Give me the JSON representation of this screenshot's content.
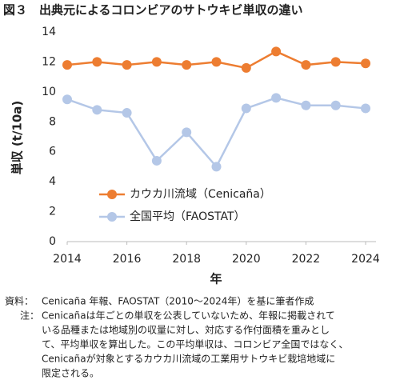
{
  "chart_data": {
    "type": "line",
    "title": "図３　出典元によるコロンビアのサトウキビ単収の違い",
    "y_label": "単収 (t/10a)",
    "x_label": "年",
    "x": [
      2014,
      2015,
      2016,
      2017,
      2018,
      2019,
      2020,
      2021,
      2022,
      2023,
      2024
    ],
    "series": [
      {
        "name": "カウカ川流域（Cenicaña）",
        "color": "#ed7d31",
        "values": [
          11.8,
          12.0,
          11.8,
          12.0,
          11.8,
          12.0,
          11.6,
          12.7,
          11.8,
          12.0,
          11.9
        ]
      },
      {
        "name": "全国平均（FAOSTAT）",
        "color": "#b4c7e7",
        "values": [
          9.5,
          8.8,
          8.6,
          5.4,
          7.3,
          5.0,
          8.9,
          9.6,
          9.1,
          9.1,
          8.9
        ]
      }
    ],
    "xlim": [
      2014,
      2024
    ],
    "xticks": [
      2014,
      2016,
      2018,
      2020,
      2022,
      2024
    ],
    "ylim": [
      0,
      14
    ],
    "yticks": [
      0,
      2,
      4,
      6,
      8,
      10,
      12,
      14
    ],
    "grid": false,
    "legend": "lower left"
  },
  "notes": {
    "source_label": "資料：",
    "source": "Cenicaña 年報、FAOSTAT（2010～2024年）を基に筆者作成",
    "note_label": "注：",
    "note_lines": [
      "Cenicañaは年ごとの単収を公表していないため、年報に掲載されて",
      "いる品種または地域別の収量に対し、対応する作付面積を重みとし",
      "て、平均単収を算出した。この平均単収は、コロンビア全国ではなく、",
      "Cenicañaが対象とするカウカ川流域の工業用サトウキビ栽培地域に",
      "限定される。"
    ]
  }
}
